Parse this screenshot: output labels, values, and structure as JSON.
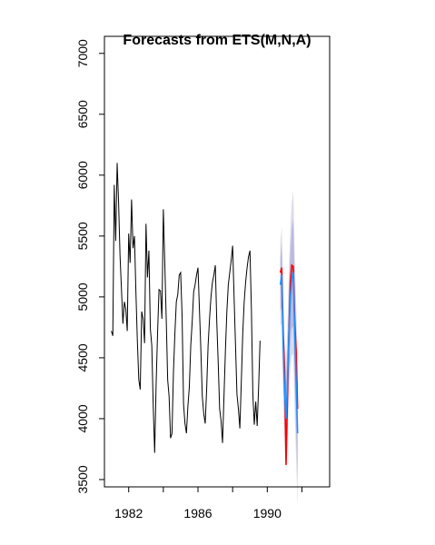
{
  "chart_data": {
    "type": "line",
    "title": "Forecasts from ETS(M,N,A)",
    "xlabel": "",
    "ylabel": "",
    "xlim": [
      1980.6,
      1993.6
    ],
    "ylim": [
      3440,
      7140
    ],
    "x_ticks": [
      1982,
      1986,
      1990
    ],
    "x_tick_minor": [
      1984,
      1988,
      1992
    ],
    "y_ticks": [
      3500,
      4000,
      4500,
      5000,
      5500,
      6000,
      6500,
      7000
    ],
    "grid": false,
    "legend": "none",
    "frequency": 12,
    "series": [
      {
        "role": "history",
        "color": "#000000",
        "start": 1981.0,
        "values": [
          4720,
          4680,
          5920,
          5460,
          6100,
          5780,
          5340,
          5060,
          4780,
          4960,
          4900,
          4720,
          5520,
          5280,
          5800,
          5400,
          5500,
          5040,
          4640,
          4320,
          4240,
          4880,
          4820,
          4620,
          5600,
          5160,
          5380,
          4740,
          4600,
          4100,
          3720,
          4280,
          4700,
          5060,
          5050,
          4820,
          5720,
          5280,
          4820,
          4320,
          4180,
          3840,
          3880,
          4380,
          4700,
          4960,
          5020,
          5180,
          5200,
          4840,
          4120,
          3960,
          3880,
          4100,
          4260,
          4600,
          4800,
          5040,
          5100,
          5180,
          5240,
          4900,
          4560,
          4180,
          4040,
          3960,
          4240,
          4600,
          4820,
          5000,
          5120,
          5180,
          5260,
          4800,
          4460,
          4080,
          3980,
          3800,
          4180,
          4560,
          4880,
          5100,
          5200,
          5300,
          5420,
          5000,
          4600,
          4200,
          4080,
          3920,
          4300,
          4700,
          4960,
          5120,
          5240,
          5330,
          5380,
          4900,
          4200,
          3950,
          4140,
          3940,
          4260,
          4640
        ]
      },
      {
        "role": "actual",
        "color": "#ff0000",
        "start": 1990.75,
        "values": [
          5200,
          5240,
          4700,
          4400,
          3620,
          4200,
          4700,
          5120,
          5260,
          5250,
          4800,
          4550,
          4080
        ]
      },
      {
        "role": "forecast",
        "color": "#1e90ff",
        "start": 1990.75,
        "values": [
          5100,
          5180,
          4600,
          4220,
          4000,
          4300,
          4700,
          5000,
          5150,
          5200,
          4700,
          4300,
          3880
        ],
        "interval_80": {
          "color": "#b9b9e0",
          "lower": [
            4880,
            4920,
            4320,
            3940,
            3700,
            3980,
            4340,
            4620,
            4740,
            4760,
            4280,
            3880,
            3480
          ],
          "upper": [
            5320,
            5440,
            4880,
            4500,
            4300,
            4620,
            5060,
            5380,
            5560,
            5640,
            5120,
            4720,
            4280
          ]
        },
        "interval_95": {
          "color": "#dcdce8",
          "lower": [
            4760,
            4780,
            4170,
            3790,
            3540,
            3810,
            4150,
            4420,
            4520,
            4530,
            4050,
            3660,
            3270
          ],
          "upper": [
            5440,
            5580,
            5030,
            4650,
            4460,
            4790,
            5250,
            5580,
            5780,
            5870,
            5350,
            4940,
            4490
          ]
        }
      }
    ]
  }
}
